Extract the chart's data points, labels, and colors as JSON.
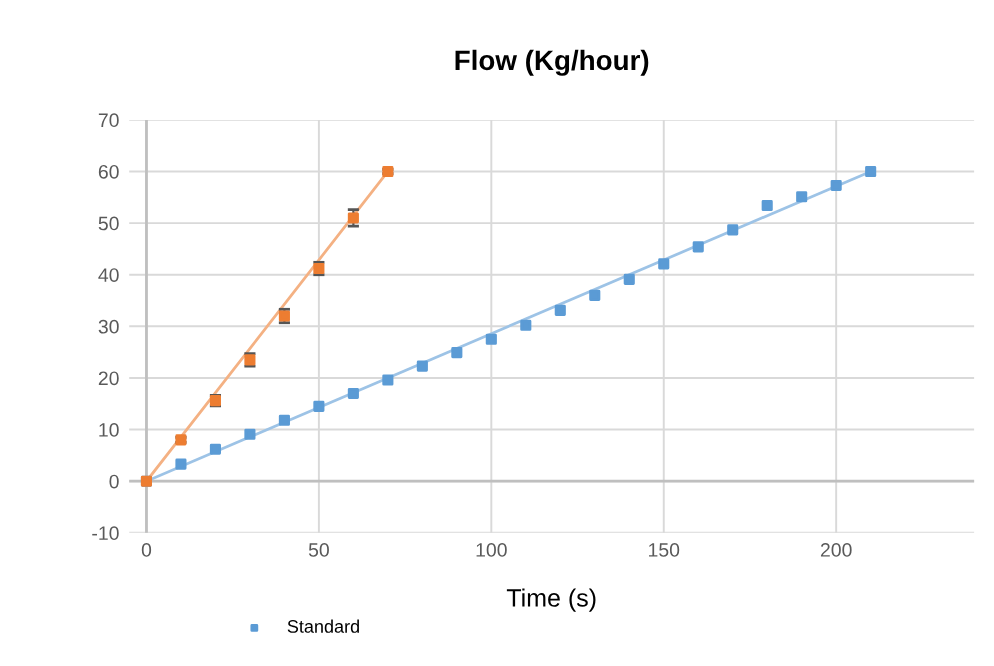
{
  "chart_data": {
    "type": "scatter",
    "title": "Flow (Kg/hour)",
    "xlabel": "Time (s)",
    "xlim": [
      -5,
      240
    ],
    "xticks": [
      0,
      50,
      100,
      150,
      200
    ],
    "ylim": [
      -10,
      70
    ],
    "yticks": [
      -10,
      0,
      10,
      20,
      30,
      40,
      50,
      60,
      70
    ],
    "grid": true,
    "legend": "bottom",
    "marker": "square",
    "series": [
      {
        "name": "Standard",
        "color": "#5b9bd5",
        "x": [
          0,
          10,
          20,
          30,
          40,
          50,
          60,
          70,
          80,
          90,
          100,
          110,
          120,
          130,
          140,
          150,
          160,
          170,
          180,
          190,
          200,
          210
        ],
        "values": [
          0,
          3.3,
          6.2,
          9.1,
          11.8,
          14.5,
          17,
          19.6,
          22.3,
          24.9,
          27.5,
          30.2,
          33.1,
          36,
          39.1,
          42.1,
          45.4,
          48.7,
          53.4,
          55.1,
          57.3,
          60
        ]
      },
      {
        "color": "#ed7d31",
        "x": [
          0,
          10,
          20,
          30,
          40,
          50,
          60,
          70
        ],
        "values": [
          0,
          8,
          15.6,
          23.5,
          32,
          41.2,
          51,
          60
        ],
        "errors": [
          null,
          0.5,
          1,
          1.2,
          1.3,
          1.2,
          1.6,
          0.4
        ]
      },
      {
        "type": "line",
        "marker": "none",
        "color": "#9dc3e6",
        "x": [
          0,
          210
        ],
        "values": [
          0,
          60
        ]
      },
      {
        "type": "line",
        "marker": "none",
        "color": "#f4b183",
        "x": [
          0,
          70
        ],
        "values": [
          0,
          60
        ]
      }
    ]
  }
}
